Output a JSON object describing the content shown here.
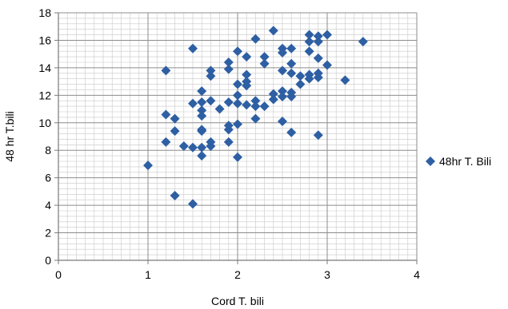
{
  "chart_data": {
    "type": "scatter",
    "title": "",
    "xlabel": "Cord T. bili",
    "ylabel": "48 hr T.bili",
    "xlim": [
      0,
      4
    ],
    "ylim": [
      0,
      18
    ],
    "xticks": [
      "0",
      "1",
      "2",
      "3",
      "4"
    ],
    "yticks": [
      "0",
      "2",
      "4",
      "6",
      "8",
      "10",
      "12",
      "14",
      "16",
      "18"
    ],
    "grid": true,
    "legend_position": "right",
    "marker": "diamond",
    "marker_color": "#2e5fa3",
    "series": [
      {
        "name": "48hr T. Bili",
        "points": [
          [
            1.0,
            6.9
          ],
          [
            1.2,
            13.8
          ],
          [
            1.2,
            10.6
          ],
          [
            1.2,
            8.6
          ],
          [
            1.3,
            10.3
          ],
          [
            1.3,
            9.4
          ],
          [
            1.3,
            4.7
          ],
          [
            1.4,
            8.3
          ],
          [
            1.5,
            15.4
          ],
          [
            1.5,
            11.4
          ],
          [
            1.5,
            8.2
          ],
          [
            1.5,
            4.1
          ],
          [
            1.6,
            12.3
          ],
          [
            1.6,
            11.5
          ],
          [
            1.6,
            10.9
          ],
          [
            1.6,
            10.5
          ],
          [
            1.6,
            9.5
          ],
          [
            1.6,
            9.4
          ],
          [
            1.6,
            8.2
          ],
          [
            1.6,
            7.6
          ],
          [
            1.7,
            13.8
          ],
          [
            1.7,
            13.4
          ],
          [
            1.7,
            11.6
          ],
          [
            1.7,
            8.6
          ],
          [
            1.7,
            8.3
          ],
          [
            1.8,
            11.0
          ],
          [
            1.9,
            14.4
          ],
          [
            1.9,
            13.9
          ],
          [
            1.9,
            11.5
          ],
          [
            1.9,
            9.8
          ],
          [
            1.9,
            9.5
          ],
          [
            1.9,
            8.6
          ],
          [
            2.0,
            15.2
          ],
          [
            2.0,
            12.8
          ],
          [
            2.0,
            12.0
          ],
          [
            2.0,
            11.4
          ],
          [
            2.0,
            9.9
          ],
          [
            2.0,
            7.5
          ],
          [
            2.1,
            14.8
          ],
          [
            2.1,
            13.5
          ],
          [
            2.1,
            13.0
          ],
          [
            2.1,
            12.7
          ],
          [
            2.1,
            11.3
          ],
          [
            2.2,
            16.1
          ],
          [
            2.2,
            11.6
          ],
          [
            2.2,
            11.2
          ],
          [
            2.2,
            10.3
          ],
          [
            2.3,
            14.8
          ],
          [
            2.3,
            14.3
          ],
          [
            2.3,
            11.2
          ],
          [
            2.4,
            16.7
          ],
          [
            2.4,
            12.1
          ],
          [
            2.4,
            11.7
          ],
          [
            2.5,
            15.4
          ],
          [
            2.5,
            15.1
          ],
          [
            2.5,
            13.8
          ],
          [
            2.5,
            12.3
          ],
          [
            2.5,
            11.9
          ],
          [
            2.5,
            10.1
          ],
          [
            2.6,
            15.4
          ],
          [
            2.6,
            14.3
          ],
          [
            2.6,
            13.6
          ],
          [
            2.6,
            12.2
          ],
          [
            2.6,
            11.9
          ],
          [
            2.6,
            9.3
          ],
          [
            2.7,
            13.4
          ],
          [
            2.7,
            12.8
          ],
          [
            2.8,
            16.4
          ],
          [
            2.8,
            15.9
          ],
          [
            2.8,
            15.2
          ],
          [
            2.8,
            13.5
          ],
          [
            2.8,
            13.2
          ],
          [
            2.9,
            16.3
          ],
          [
            2.9,
            15.9
          ],
          [
            2.9,
            14.7
          ],
          [
            2.9,
            13.6
          ],
          [
            2.9,
            13.3
          ],
          [
            2.9,
            9.1
          ],
          [
            3.0,
            16.4
          ],
          [
            3.0,
            14.2
          ],
          [
            3.2,
            13.1
          ],
          [
            3.4,
            15.9
          ]
        ]
      }
    ]
  }
}
